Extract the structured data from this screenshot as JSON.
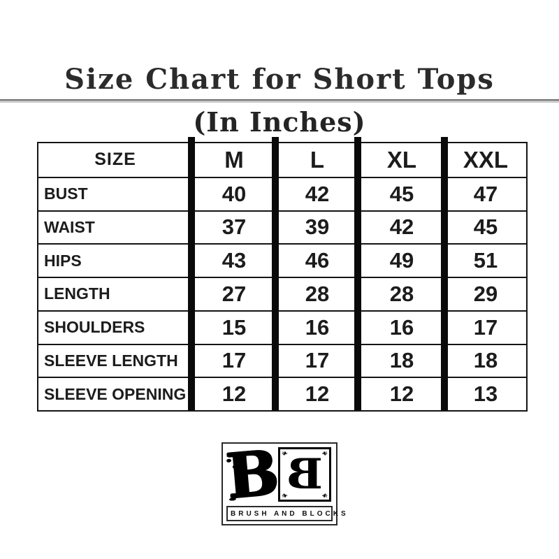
{
  "header": {
    "title": "Size Chart for Short Tops",
    "subtitle": "(In Inches)"
  },
  "table": {
    "header": [
      "SIZE",
      "M",
      "L",
      "XL",
      "XXL"
    ],
    "rows": [
      {
        "label": "BUST",
        "values": [
          "40",
          "42",
          "45",
          "47"
        ]
      },
      {
        "label": "WAIST",
        "values": [
          "37",
          "39",
          "42",
          "45"
        ]
      },
      {
        "label": "HIPS",
        "values": [
          "43",
          "46",
          "49",
          "51"
        ]
      },
      {
        "label": "LENGTH",
        "values": [
          "27",
          "28",
          "28",
          "29"
        ]
      },
      {
        "label": "SHOULDERS",
        "values": [
          "15",
          "16",
          "16",
          "17"
        ]
      },
      {
        "label": "SLEEVE LENGTH",
        "values": [
          "17",
          "17",
          "18",
          "18"
        ]
      },
      {
        "label": "SLEEVE OPENING",
        "values": [
          "12",
          "12",
          "12",
          "13"
        ]
      }
    ]
  },
  "logo": {
    "monogram_left": "B",
    "monogram_right": "B",
    "brand_text": "BRUSH AND BLOCKS"
  },
  "colors": {
    "background": "#ffffff",
    "text": "#1c1c1c",
    "table_border": "#141414",
    "separator_bar": "#0a0a0a",
    "divider_dark": "#6f6f6f",
    "divider_light": "#c9c9c9"
  },
  "chart_data": {
    "type": "table",
    "title": "Size Chart for Short Tops",
    "subtitle": "(In Inches)",
    "unit": "inches",
    "columns": [
      "SIZE",
      "M",
      "L",
      "XL",
      "XXL"
    ],
    "rows": [
      [
        "BUST",
        40,
        42,
        45,
        47
      ],
      [
        "WAIST",
        37,
        39,
        42,
        45
      ],
      [
        "HIPS",
        43,
        46,
        49,
        51
      ],
      [
        "LENGTH",
        27,
        28,
        28,
        29
      ],
      [
        "SHOULDERS",
        15,
        16,
        16,
        17
      ],
      [
        "SLEEVE LENGTH",
        17,
        17,
        18,
        18
      ],
      [
        "SLEEVE OPENING",
        12,
        12,
        12,
        13
      ]
    ]
  }
}
